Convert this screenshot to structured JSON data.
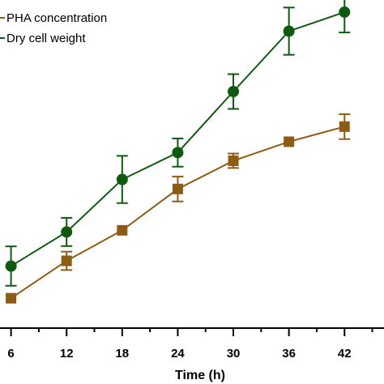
{
  "chart_data": {
    "type": "line",
    "xlabel": "Time (h)",
    "ylabel": "",
    "x": [
      6,
      12,
      18,
      24,
      30,
      36,
      42
    ],
    "xticks": [
      "6",
      "12",
      "18",
      "24",
      "30",
      "36",
      "42"
    ],
    "xlim": [
      0,
      46
    ],
    "ylim": [
      0,
      10
    ],
    "grid": false,
    "legend_position": "top-left",
    "series": [
      {
        "name": "PHA concentration",
        "color": "#8b5c12",
        "marker": "square",
        "values": [
          0.91,
          2.05,
          2.98,
          4.24,
          5.1,
          5.68,
          6.14
        ],
        "errors": [
          0,
          0.28,
          0,
          0.38,
          0.22,
          0,
          0.38
        ]
      },
      {
        "name": "Dry cell weight",
        "color": "#0e5b10",
        "marker": "circle",
        "values": [
          1.89,
          2.93,
          4.53,
          5.35,
          7.21,
          9.05,
          9.63
        ],
        "errors": [
          0.6,
          0.43,
          0.72,
          0.43,
          0.53,
          0.72,
          0.62
        ]
      }
    ]
  }
}
